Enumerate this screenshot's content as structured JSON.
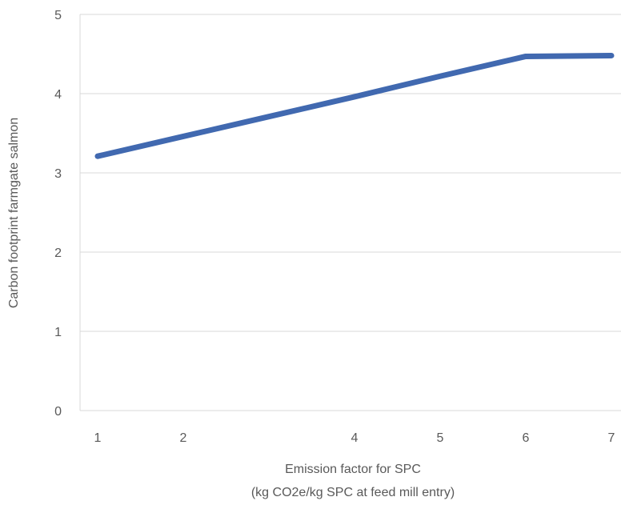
{
  "chart_data": {
    "type": "line",
    "x": [
      1,
      2,
      3,
      4,
      5,
      6,
      7
    ],
    "series": [
      {
        "values": [
          3.21,
          3.46,
          3.71,
          3.96,
          4.22,
          4.47,
          4.48
        ],
        "color": "#4169b0"
      }
    ],
    "xlabel_line1": "Emission factor for SPC",
    "xlabel_line2": "(kg CO2e/kg SPC at feed mill entry)",
    "ylabel": "Carbon footprint farmgate salmon",
    "xticks": [
      "1",
      "2",
      "4",
      "5",
      "6",
      "7"
    ],
    "yticks": [
      "0",
      "1",
      "2",
      "3",
      "4",
      "5"
    ],
    "ylim": [
      0,
      5
    ],
    "grid": true,
    "grid_color": "#d9d9d9",
    "text_color": "#595959"
  }
}
